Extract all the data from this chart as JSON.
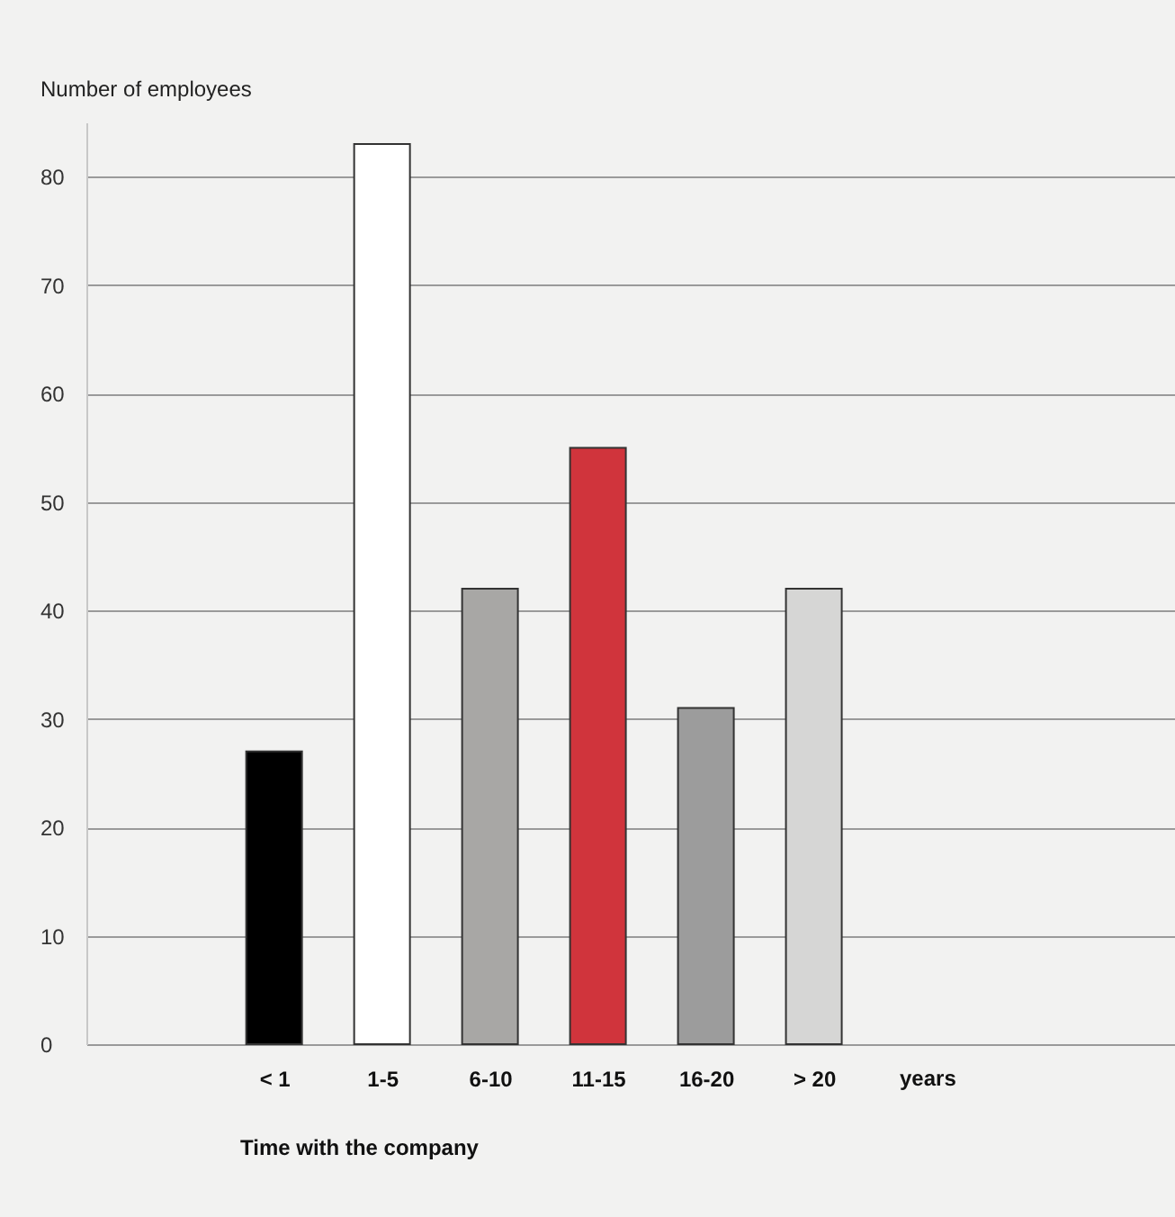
{
  "chart_data": {
    "type": "bar",
    "ylabel": "Number of employees",
    "xlabel": "Time with the company",
    "categories": [
      "< 1",
      "1-5",
      "6-10",
      "11-15",
      "16-20",
      "> 20"
    ],
    "values": [
      27,
      83,
      42,
      55,
      31,
      42
    ],
    "colors": [
      "#000000",
      "#ffffff",
      "#a8a7a5",
      "#d0343c",
      "#9c9c9c",
      "#d6d6d5"
    ],
    "ylim": [
      0,
      85
    ],
    "yticks": [
      0,
      10,
      20,
      30,
      40,
      50,
      60,
      70,
      80
    ],
    "grid": "y",
    "annotations": [
      "years"
    ]
  }
}
